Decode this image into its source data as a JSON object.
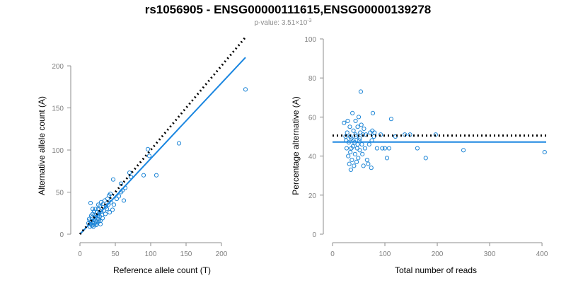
{
  "title": "rs1056905 - ENSG00000111615,ENSG00000139278",
  "subtitle": {
    "prefix": "p-value: 3.51",
    "times": "×",
    "base": "10",
    "exponent": "-3"
  },
  "colors": {
    "points": "#1f86d6",
    "fit_line": "#1a86e0",
    "reference_line": "#000000",
    "axis": "#8c8c8c",
    "tick_text": "#7f7f7f"
  },
  "chart_data": [
    {
      "type": "scatter",
      "id": "left",
      "xlabel": "Reference allele count (T)",
      "ylabel": "Alternative allele count (A)",
      "xlim": [
        0,
        236
      ],
      "ylim": [
        0,
        232
      ],
      "xticks": [
        0,
        50,
        100,
        150,
        200
      ],
      "yticks": [
        0,
        50,
        100,
        150,
        200
      ],
      "grid": false,
      "fit_line": {
        "style": "solid",
        "x": [
          0,
          234
        ],
        "y": [
          0,
          210
        ]
      },
      "reference_line": {
        "style": "dotted",
        "x": [
          0,
          234
        ],
        "y": [
          0,
          234
        ]
      },
      "points": [
        {
          "x": 12,
          "y": 13
        },
        {
          "x": 14,
          "y": 9
        },
        {
          "x": 15,
          "y": 12
        },
        {
          "x": 16,
          "y": 15
        },
        {
          "x": 17,
          "y": 10
        },
        {
          "x": 18,
          "y": 14
        },
        {
          "x": 19,
          "y": 11
        },
        {
          "x": 20,
          "y": 17
        },
        {
          "x": 21,
          "y": 13
        },
        {
          "x": 22,
          "y": 20
        },
        {
          "x": 23,
          "y": 15
        },
        {
          "x": 24,
          "y": 12
        },
        {
          "x": 25,
          "y": 22
        },
        {
          "x": 26,
          "y": 18
        },
        {
          "x": 27,
          "y": 25
        },
        {
          "x": 28,
          "y": 21
        },
        {
          "x": 29,
          "y": 16
        },
        {
          "x": 30,
          "y": 27
        },
        {
          "x": 31,
          "y": 23
        },
        {
          "x": 32,
          "y": 19
        },
        {
          "x": 18,
          "y": 24
        },
        {
          "x": 20,
          "y": 27
        },
        {
          "x": 16,
          "y": 22
        },
        {
          "x": 15,
          "y": 37
        },
        {
          "x": 22,
          "y": 30
        },
        {
          "x": 24,
          "y": 26
        },
        {
          "x": 26,
          "y": 30
        },
        {
          "x": 28,
          "y": 33
        },
        {
          "x": 30,
          "y": 38
        },
        {
          "x": 33,
          "y": 36
        },
        {
          "x": 35,
          "y": 40
        },
        {
          "x": 37,
          "y": 33
        },
        {
          "x": 39,
          "y": 42
        },
        {
          "x": 41,
          "y": 46
        },
        {
          "x": 43,
          "y": 48
        },
        {
          "x": 34,
          "y": 28
        },
        {
          "x": 36,
          "y": 24
        },
        {
          "x": 38,
          "y": 30
        },
        {
          "x": 40,
          "y": 35
        },
        {
          "x": 42,
          "y": 26
        },
        {
          "x": 44,
          "y": 38
        },
        {
          "x": 46,
          "y": 29
        },
        {
          "x": 48,
          "y": 35
        },
        {
          "x": 52,
          "y": 42
        },
        {
          "x": 55,
          "y": 45
        },
        {
          "x": 58,
          "y": 50
        },
        {
          "x": 60,
          "y": 52
        },
        {
          "x": 62,
          "y": 40
        },
        {
          "x": 64,
          "y": 55
        },
        {
          "x": 47,
          "y": 65
        },
        {
          "x": 58,
          "y": 60
        },
        {
          "x": 70,
          "y": 73
        },
        {
          "x": 72,
          "y": 68
        },
        {
          "x": 90,
          "y": 70
        },
        {
          "x": 96,
          "y": 101
        },
        {
          "x": 98,
          "y": 93
        },
        {
          "x": 108,
          "y": 70
        },
        {
          "x": 140,
          "y": 108
        },
        {
          "x": 234,
          "y": 172
        },
        {
          "x": 13,
          "y": 18
        },
        {
          "x": 17,
          "y": 20
        },
        {
          "x": 19,
          "y": 9
        },
        {
          "x": 21,
          "y": 23
        },
        {
          "x": 23,
          "y": 11
        },
        {
          "x": 25,
          "y": 14
        },
        {
          "x": 27,
          "y": 16
        },
        {
          "x": 29,
          "y": 12
        },
        {
          "x": 18,
          "y": 30
        },
        {
          "x": 26,
          "y": 35
        },
        {
          "x": 14,
          "y": 16
        }
      ]
    },
    {
      "type": "scatter",
      "id": "right",
      "xlabel": "Total number of reads",
      "ylabel": "Percentage alternative (A)",
      "xlim": [
        0,
        408
      ],
      "ylim": [
        0,
        100
      ],
      "xticks": [
        0,
        100,
        200,
        300,
        400
      ],
      "yticks": [
        0,
        20,
        40,
        60,
        80,
        100
      ],
      "grid": false,
      "fit_line": {
        "style": "solid",
        "x": [
          0,
          408
        ],
        "y": [
          47.2,
          47.2
        ]
      },
      "reference_line": {
        "style": "dotted",
        "x": [
          0,
          408
        ],
        "y": [
          50.5,
          50.5
        ]
      },
      "points": [
        {
          "x": 22,
          "y": 57
        },
        {
          "x": 25,
          "y": 50
        },
        {
          "x": 27,
          "y": 44
        },
        {
          "x": 28,
          "y": 52
        },
        {
          "x": 30,
          "y": 40
        },
        {
          "x": 31,
          "y": 47
        },
        {
          "x": 32,
          "y": 36
        },
        {
          "x": 33,
          "y": 55
        },
        {
          "x": 34,
          "y": 42
        },
        {
          "x": 35,
          "y": 33
        },
        {
          "x": 36,
          "y": 49
        },
        {
          "x": 37,
          "y": 38
        },
        {
          "x": 38,
          "y": 62
        },
        {
          "x": 39,
          "y": 45
        },
        {
          "x": 40,
          "y": 53
        },
        {
          "x": 41,
          "y": 35
        },
        {
          "x": 42,
          "y": 47
        },
        {
          "x": 43,
          "y": 41
        },
        {
          "x": 44,
          "y": 58
        },
        {
          "x": 45,
          "y": 50
        },
        {
          "x": 46,
          "y": 37
        },
        {
          "x": 47,
          "y": 44
        },
        {
          "x": 48,
          "y": 55
        },
        {
          "x": 49,
          "y": 39
        },
        {
          "x": 50,
          "y": 60
        },
        {
          "x": 51,
          "y": 48
        },
        {
          "x": 52,
          "y": 43
        },
        {
          "x": 53,
          "y": 52
        },
        {
          "x": 54,
          "y": 73
        },
        {
          "x": 55,
          "y": 56
        },
        {
          "x": 56,
          "y": 46
        },
        {
          "x": 57,
          "y": 41
        },
        {
          "x": 58,
          "y": 51
        },
        {
          "x": 59,
          "y": 35
        },
        {
          "x": 60,
          "y": 54
        },
        {
          "x": 62,
          "y": 44
        },
        {
          "x": 64,
          "y": 51
        },
        {
          "x": 66,
          "y": 38
        },
        {
          "x": 68,
          "y": 36
        },
        {
          "x": 70,
          "y": 46
        },
        {
          "x": 72,
          "y": 52
        },
        {
          "x": 74,
          "y": 34
        },
        {
          "x": 75,
          "y": 48
        },
        {
          "x": 76,
          "y": 53
        },
        {
          "x": 77,
          "y": 62
        },
        {
          "x": 79,
          "y": 50
        },
        {
          "x": 80,
          "y": 52
        },
        {
          "x": 85,
          "y": 44
        },
        {
          "x": 92,
          "y": 51
        },
        {
          "x": 95,
          "y": 44
        },
        {
          "x": 100,
          "y": 44
        },
        {
          "x": 104,
          "y": 39
        },
        {
          "x": 108,
          "y": 44
        },
        {
          "x": 112,
          "y": 59
        },
        {
          "x": 120,
          "y": 50
        },
        {
          "x": 138,
          "y": 51
        },
        {
          "x": 148,
          "y": 51
        },
        {
          "x": 162,
          "y": 44
        },
        {
          "x": 178,
          "y": 39
        },
        {
          "x": 197,
          "y": 51
        },
        {
          "x": 250,
          "y": 43
        },
        {
          "x": 405,
          "y": 42
        },
        {
          "x": 26,
          "y": 48
        },
        {
          "x": 29,
          "y": 58
        },
        {
          "x": 34,
          "y": 50
        },
        {
          "x": 36,
          "y": 44
        },
        {
          "x": 40,
          "y": 48
        },
        {
          "x": 44,
          "y": 51
        },
        {
          "x": 48,
          "y": 46
        },
        {
          "x": 52,
          "y": 49
        }
      ]
    }
  ]
}
